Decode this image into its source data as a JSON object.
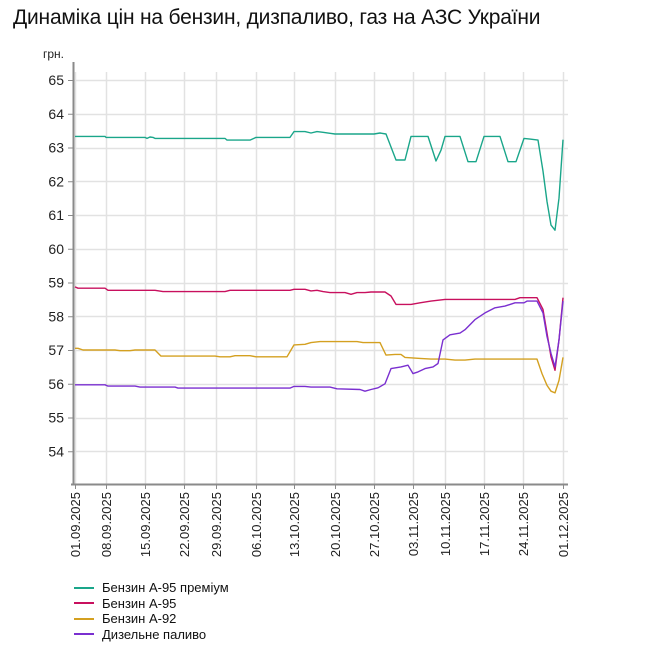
{
  "title": "Динаміка цін на бензин, дизпаливо, газ на АЗС України",
  "chart_data": {
    "type": "line",
    "title": "Динаміка цін на бензин, дизпаливо, газ на АЗС України",
    "xlabel": "",
    "ylabel": "грн.",
    "ylim": [
      53,
      65.5
    ],
    "yticks": [
      54,
      55,
      56,
      57,
      58,
      59,
      60,
      61,
      62,
      63,
      64,
      65
    ],
    "grid": true,
    "legend_position": "bottom-left",
    "x_ticks": [
      {
        "label": "01.09.2025",
        "pos": 0
      },
      {
        "label": "08.09.2025",
        "pos": 31
      },
      {
        "label": "15.09.2025",
        "pos": 70
      },
      {
        "label": "22.09.2025",
        "pos": 109
      },
      {
        "label": "29.09.2025",
        "pos": 141
      },
      {
        "label": "06.10.2025",
        "pos": 181
      },
      {
        "label": "13.10.2025",
        "pos": 219
      },
      {
        "label": "20.10.2025",
        "pos": 260
      },
      {
        "label": "27.10.2025",
        "pos": 299
      },
      {
        "label": "03.11.2025",
        "pos": 338
      },
      {
        "label": "10.11.2025",
        "pos": 370
      },
      {
        "label": "17.11.2025",
        "pos": 409
      },
      {
        "label": "24.11.2025",
        "pos": 448
      },
      {
        "label": "01.12.2025",
        "pos": 488
      }
    ],
    "series": [
      {
        "name": "Бензин А-95 преміум",
        "color": "#1aa68a",
        "points": [
          [
            0,
            63.33
          ],
          [
            30,
            63.33
          ],
          [
            31,
            63.3
          ],
          [
            70,
            63.3
          ],
          [
            72,
            63.27
          ],
          [
            75,
            63.31
          ],
          [
            78,
            63.3
          ],
          [
            80,
            63.27
          ],
          [
            150,
            63.27
          ],
          [
            152,
            63.22
          ],
          [
            175,
            63.22
          ],
          [
            181,
            63.3
          ],
          [
            215,
            63.3
          ],
          [
            219,
            63.47
          ],
          [
            230,
            63.47
          ],
          [
            236,
            63.43
          ],
          [
            242,
            63.47
          ],
          [
            248,
            63.45
          ],
          [
            255,
            63.42
          ],
          [
            260,
            63.4
          ],
          [
            299,
            63.4
          ],
          [
            305,
            63.43
          ],
          [
            311,
            63.4
          ],
          [
            321,
            62.63
          ],
          [
            330,
            62.63
          ],
          [
            336,
            63.33
          ],
          [
            353,
            63.33
          ],
          [
            361,
            62.6
          ],
          [
            366,
            62.92
          ],
          [
            370,
            63.33
          ],
          [
            385,
            63.33
          ],
          [
            393,
            62.58
          ],
          [
            401,
            62.58
          ],
          [
            409,
            63.33
          ],
          [
            425,
            63.33
          ],
          [
            433,
            62.58
          ],
          [
            441,
            62.58
          ],
          [
            449,
            63.27
          ],
          [
            455,
            63.25
          ],
          [
            463,
            63.22
          ],
          [
            468,
            62.3
          ],
          [
            472,
            61.4
          ],
          [
            476,
            60.7
          ],
          [
            480,
            60.55
          ],
          [
            484,
            61.5
          ],
          [
            488,
            63.23
          ]
        ]
      },
      {
        "name": "Бензин А-95",
        "color": "#c8105e",
        "points": [
          [
            0,
            58.87
          ],
          [
            3,
            58.83
          ],
          [
            30,
            58.83
          ],
          [
            33,
            58.77
          ],
          [
            80,
            58.77
          ],
          [
            88,
            58.73
          ],
          [
            150,
            58.73
          ],
          [
            155,
            58.77
          ],
          [
            215,
            58.77
          ],
          [
            219,
            58.8
          ],
          [
            230,
            58.8
          ],
          [
            236,
            58.75
          ],
          [
            242,
            58.77
          ],
          [
            248,
            58.73
          ],
          [
            255,
            58.7
          ],
          [
            270,
            58.7
          ],
          [
            276,
            58.65
          ],
          [
            282,
            58.7
          ],
          [
            290,
            58.7
          ],
          [
            296,
            58.72
          ],
          [
            310,
            58.72
          ],
          [
            316,
            58.6
          ],
          [
            321,
            58.35
          ],
          [
            336,
            58.35
          ],
          [
            345,
            58.4
          ],
          [
            356,
            58.45
          ],
          [
            370,
            58.5
          ],
          [
            440,
            58.5
          ],
          [
            445,
            58.55
          ],
          [
            462,
            58.55
          ],
          [
            468,
            58.2
          ],
          [
            472,
            57.5
          ],
          [
            476,
            56.8
          ],
          [
            480,
            56.4
          ],
          [
            484,
            57.3
          ],
          [
            488,
            58.55
          ]
        ]
      },
      {
        "name": "Бензин А-92",
        "color": "#d4a020",
        "points": [
          [
            0,
            57.05
          ],
          [
            3,
            57.05
          ],
          [
            8,
            57.0
          ],
          [
            40,
            57.0
          ],
          [
            45,
            56.98
          ],
          [
            55,
            56.98
          ],
          [
            60,
            57.0
          ],
          [
            80,
            57.0
          ],
          [
            86,
            56.82
          ],
          [
            140,
            56.82
          ],
          [
            145,
            56.8
          ],
          [
            155,
            56.8
          ],
          [
            160,
            56.83
          ],
          [
            175,
            56.83
          ],
          [
            181,
            56.8
          ],
          [
            212,
            56.8
          ],
          [
            219,
            57.15
          ],
          [
            230,
            57.17
          ],
          [
            236,
            57.22
          ],
          [
            245,
            57.25
          ],
          [
            282,
            57.25
          ],
          [
            288,
            57.22
          ],
          [
            305,
            57.22
          ],
          [
            311,
            56.85
          ],
          [
            320,
            56.87
          ],
          [
            326,
            56.87
          ],
          [
            330,
            56.78
          ],
          [
            345,
            56.75
          ],
          [
            356,
            56.73
          ],
          [
            365,
            56.73
          ],
          [
            370,
            56.73
          ],
          [
            380,
            56.7
          ],
          [
            390,
            56.7
          ],
          [
            400,
            56.73
          ],
          [
            440,
            56.73
          ],
          [
            455,
            56.73
          ],
          [
            462,
            56.73
          ],
          [
            467,
            56.3
          ],
          [
            472,
            55.95
          ],
          [
            476,
            55.78
          ],
          [
            480,
            55.73
          ],
          [
            484,
            56.1
          ],
          [
            488,
            56.78
          ]
        ]
      },
      {
        "name": "Дизельне паливо",
        "color": "#7a2fd0",
        "points": [
          [
            0,
            55.97
          ],
          [
            30,
            55.97
          ],
          [
            33,
            55.93
          ],
          [
            60,
            55.93
          ],
          [
            65,
            55.9
          ],
          [
            100,
            55.9
          ],
          [
            103,
            55.87
          ],
          [
            215,
            55.87
          ],
          [
            219,
            55.92
          ],
          [
            230,
            55.92
          ],
          [
            236,
            55.9
          ],
          [
            255,
            55.9
          ],
          [
            262,
            55.85
          ],
          [
            285,
            55.83
          ],
          [
            290,
            55.78
          ],
          [
            296,
            55.83
          ],
          [
            303,
            55.88
          ],
          [
            310,
            56.0
          ],
          [
            316,
            56.45
          ],
          [
            326,
            56.5
          ],
          [
            333,
            56.55
          ],
          [
            338,
            56.3
          ],
          [
            343,
            56.35
          ],
          [
            350,
            56.45
          ],
          [
            358,
            56.5
          ],
          [
            363,
            56.6
          ],
          [
            368,
            57.3
          ],
          [
            375,
            57.45
          ],
          [
            385,
            57.5
          ],
          [
            390,
            57.6
          ],
          [
            400,
            57.9
          ],
          [
            410,
            58.1
          ],
          [
            420,
            58.25
          ],
          [
            430,
            58.3
          ],
          [
            440,
            58.4
          ],
          [
            449,
            58.4
          ],
          [
            452,
            58.45
          ],
          [
            462,
            58.45
          ],
          [
            468,
            58.1
          ],
          [
            472,
            57.4
          ],
          [
            476,
            56.9
          ],
          [
            480,
            56.5
          ],
          [
            484,
            57.3
          ],
          [
            488,
            58.45
          ]
        ]
      }
    ]
  },
  "axis": {
    "y_unit_label": "грн."
  },
  "legend": {
    "items": [
      {
        "label": "Бензин А-95 преміум",
        "color": "#1aa68a"
      },
      {
        "label": "Бензин А-95",
        "color": "#c8105e"
      },
      {
        "label": "Бензин А-92",
        "color": "#d4a020"
      },
      {
        "label": "Дизельне паливо",
        "color": "#7a2fd0"
      }
    ]
  }
}
